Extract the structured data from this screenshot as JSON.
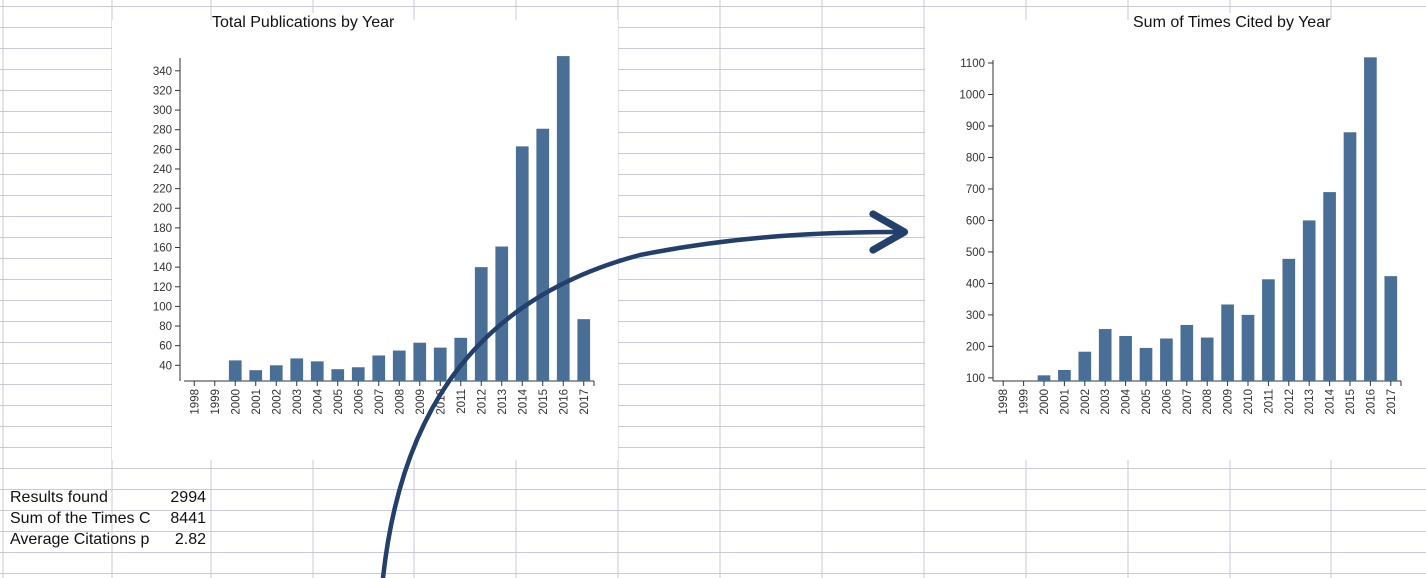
{
  "chart_data": [
    {
      "type": "bar",
      "title": "Total Publications by Year",
      "categories": [
        "1998",
        "1999",
        "2000",
        "2001",
        "2002",
        "2003",
        "2004",
        "2005",
        "2006",
        "2007",
        "2008",
        "2009",
        "2010",
        "2011",
        "2012",
        "2013",
        "2014",
        "2015",
        "2016",
        "2017"
      ],
      "values": [
        21,
        21,
        45,
        35,
        40,
        47,
        44,
        36,
        38,
        50,
        55,
        63,
        58,
        68,
        140,
        161,
        263,
        281,
        355,
        87
      ],
      "ylim": [
        24,
        350
      ],
      "yticks": [
        40,
        60,
        80,
        100,
        120,
        140,
        160,
        180,
        200,
        220,
        240,
        260,
        280,
        300,
        320,
        340
      ],
      "color": "#4a6f96"
    },
    {
      "type": "bar",
      "title": "Sum of Times Cited by Year",
      "categories": [
        "1998",
        "1999",
        "2000",
        "2001",
        "2002",
        "2003",
        "2004",
        "2005",
        "2006",
        "2007",
        "2008",
        "2009",
        "2010",
        "2011",
        "2012",
        "2013",
        "2014",
        "2015",
        "2016",
        "2017"
      ],
      "values": [
        88,
        88,
        108,
        125,
        183,
        255,
        233,
        195,
        225,
        268,
        228,
        333,
        300,
        413,
        478,
        600,
        690,
        880,
        1118,
        423
      ],
      "ylim": [
        90,
        1100
      ],
      "yticks": [
        100,
        200,
        300,
        400,
        500,
        600,
        700,
        800,
        900,
        1000,
        1100
      ],
      "color": "#4a6f96"
    }
  ],
  "summary": [
    {
      "label": "Results found",
      "value": "2994"
    },
    {
      "label": "Sum of the Times Cited",
      "value": "8441"
    },
    {
      "label": "Average Citations per Item",
      "value": "2.82"
    }
  ],
  "colors": {
    "gridline": "#c9c9d9",
    "bar": "#4a6f96",
    "arrow": "#233f6b"
  }
}
